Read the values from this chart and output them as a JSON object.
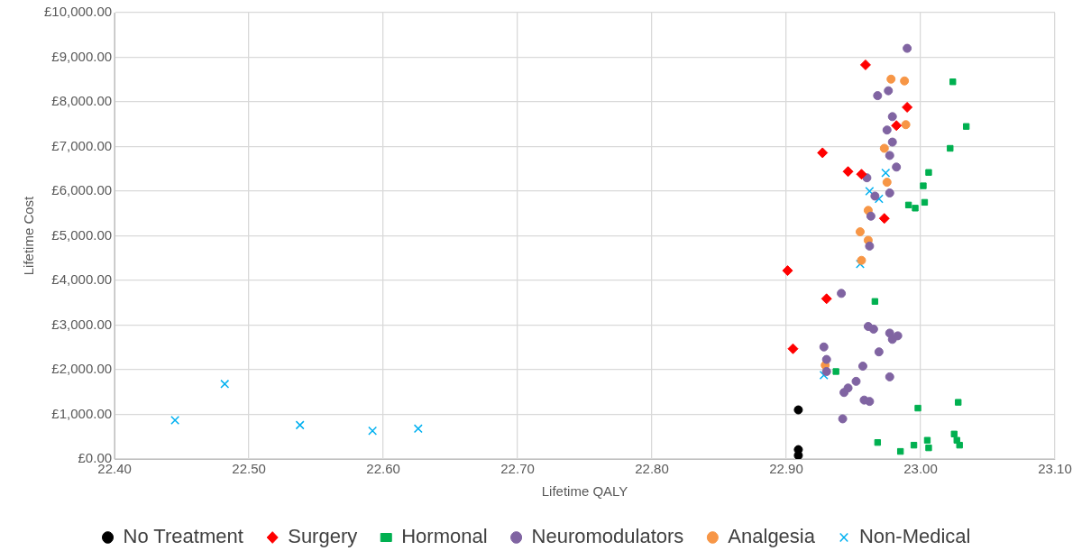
{
  "chart_data": {
    "type": "scatter",
    "xlabel": "Lifetime QALY",
    "ylabel": "Lifetime Cost",
    "xlim": [
      22.4,
      23.1
    ],
    "xticks": [
      {
        "value": 22.4,
        "label": "22.40"
      },
      {
        "value": 22.5,
        "label": "22.50"
      },
      {
        "value": 22.6,
        "label": "22.60"
      },
      {
        "value": 22.7,
        "label": "22.70"
      },
      {
        "value": 22.8,
        "label": "22.80"
      },
      {
        "value": 22.9,
        "label": "22.90"
      },
      {
        "value": 23.0,
        "label": "23.00"
      },
      {
        "value": 23.1,
        "label": "23.10"
      }
    ],
    "ylim": [
      0,
      10000
    ],
    "yticks": [
      {
        "value": 0,
        "label": "£0.00"
      },
      {
        "value": 1000,
        "label": "£1,000.00"
      },
      {
        "value": 2000,
        "label": "£2,000.00"
      },
      {
        "value": 3000,
        "label": "£3,000.00"
      },
      {
        "value": 4000,
        "label": "£4,000.00"
      },
      {
        "value": 5000,
        "label": "£5,000.00"
      },
      {
        "value": 6000,
        "label": "£6,000.00"
      },
      {
        "value": 7000,
        "label": "£7,000.00"
      },
      {
        "value": 8000,
        "label": "£8,000.00"
      },
      {
        "value": 9000,
        "label": "£9,000.00"
      },
      {
        "value": 10000,
        "label": "£10,000.00"
      }
    ],
    "grid": true,
    "legend": "bottom",
    "series": [
      {
        "name": "No Treatment",
        "color": "#000000",
        "marker": "circle",
        "x": [
          22.909,
          22.909,
          22.909
        ],
        "values": [
          1100,
          210,
          80
        ]
      },
      {
        "name": "Surgery",
        "color": "#ff0000",
        "marker": "diamond",
        "x": [
          22.959,
          22.99,
          22.982,
          22.927,
          22.946,
          22.956,
          22.973,
          22.901,
          22.93,
          22.905
        ],
        "values": [
          8830,
          7880,
          7470,
          6860,
          6440,
          6380,
          5390,
          4220,
          3590,
          2470
        ]
      },
      {
        "name": "Hormonal",
        "color": "#00b050",
        "marker": "square",
        "x": [
          23.024,
          23.034,
          23.022,
          23.006,
          23.002,
          23.003,
          22.991,
          22.996,
          22.966,
          22.937,
          22.998,
          23.028,
          22.968,
          22.985,
          22.995,
          23.005,
          23.006,
          23.025,
          23.027,
          23.029
        ],
        "values": [
          8450,
          7450,
          6960,
          6420,
          6120,
          5750,
          5690,
          5620,
          3530,
          1960,
          1140,
          1270,
          370,
          170,
          310,
          420,
          250,
          560,
          420,
          310
        ]
      },
      {
        "name": "Neuromodulators",
        "color": "#8064a2",
        "marker": "circle",
        "x": [
          22.99,
          22.968,
          22.976,
          22.979,
          22.975,
          22.979,
          22.977,
          22.982,
          22.96,
          22.966,
          22.977,
          22.963,
          22.962,
          22.941,
          22.961,
          22.965,
          22.977,
          22.979,
          22.983,
          22.928,
          22.969,
          22.93,
          22.93,
          22.957,
          22.977,
          22.952,
          22.946,
          22.943,
          22.958,
          22.962,
          22.942
        ],
        "values": [
          9200,
          8140,
          8250,
          7670,
          7370,
          7100,
          6800,
          6540,
          6300,
          5890,
          5960,
          5440,
          4770,
          3710,
          2970,
          2910,
          2820,
          2680,
          2760,
          2510,
          2400,
          2230,
          1960,
          2080,
          1840,
          1740,
          1590,
          1490,
          1320,
          1290,
          900
        ]
      },
      {
        "name": "Analgesia",
        "color": "#f79646",
        "marker": "circle",
        "x": [
          22.978,
          22.988,
          22.989,
          22.973,
          22.975,
          22.961,
          22.955,
          22.961,
          22.956,
          22.929
        ],
        "values": [
          8510,
          8470,
          7490,
          6960,
          6200,
          5570,
          5090,
          4900,
          4450,
          2100
        ]
      },
      {
        "name": "Non-Medical",
        "color": "#00b0f0",
        "marker": "cross",
        "x": [
          22.974,
          22.962,
          22.969,
          22.955,
          22.928,
          22.482,
          22.445,
          22.538,
          22.592,
          22.626
        ],
        "values": [
          6410,
          6000,
          5830,
          4370,
          1880,
          1680,
          870,
          760,
          630,
          680
        ]
      }
    ]
  }
}
